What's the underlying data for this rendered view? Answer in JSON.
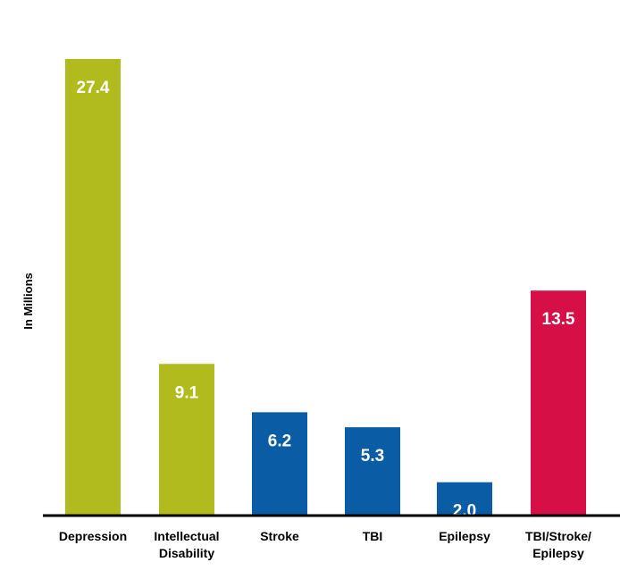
{
  "chart_data": {
    "type": "bar",
    "title": "",
    "xlabel": "",
    "ylabel": "In Millions",
    "ylim": [
      0,
      28
    ],
    "grid": false,
    "categories": [
      [
        "Depression"
      ],
      [
        "Intellectual",
        "Disability"
      ],
      [
        "Stroke"
      ],
      [
        "TBI"
      ],
      [
        "Epilepsy"
      ],
      [
        "TBI/Stroke/",
        "Epilepsy"
      ]
    ],
    "values": [
      27.4,
      9.1,
      6.2,
      5.3,
      2.0,
      13.5
    ],
    "value_labels": [
      "27.4",
      "9.1",
      "6.2",
      "5.3",
      "2.0",
      "13.5"
    ],
    "colors": [
      "#b2bb1e",
      "#b2bb1e",
      "#0a5da4",
      "#0a5da4",
      "#0a5da4",
      "#d60f46"
    ]
  }
}
